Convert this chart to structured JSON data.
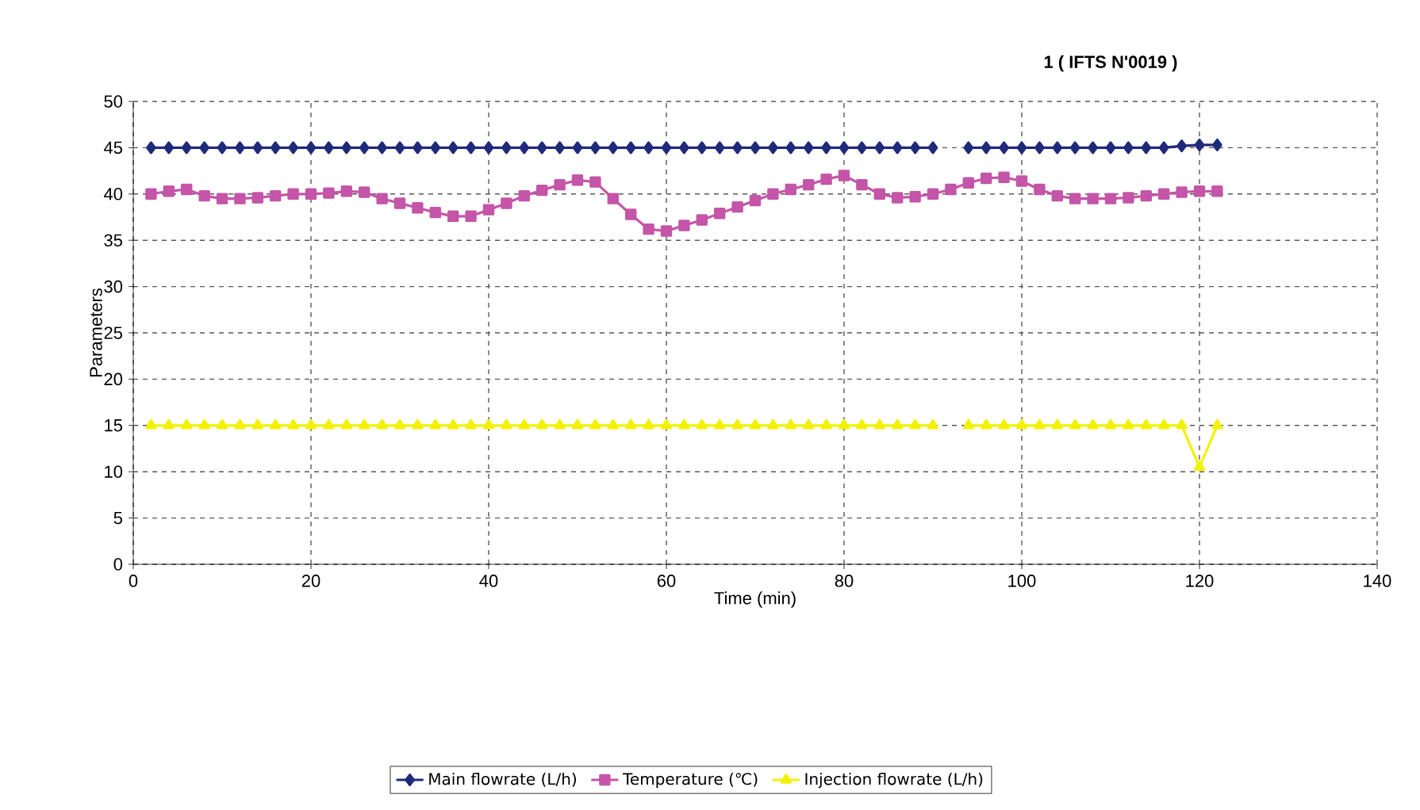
{
  "chart_data": {
    "type": "line",
    "title": "1 ( IFTS N'0019 )",
    "xlabel": "Time (min)",
    "ylabel": "Parameters",
    "x": [
      2,
      4,
      6,
      8,
      10,
      12,
      14,
      16,
      18,
      20,
      22,
      24,
      26,
      28,
      30,
      32,
      34,
      36,
      38,
      40,
      42,
      44,
      46,
      48,
      50,
      52,
      54,
      56,
      58,
      60,
      62,
      64,
      66,
      68,
      70,
      72,
      74,
      76,
      78,
      80,
      82,
      84,
      86,
      88,
      90,
      92,
      94,
      96,
      98,
      100,
      102,
      104,
      106,
      108,
      110,
      112,
      114,
      116,
      118,
      120,
      122
    ],
    "series": [
      {
        "name": "Main flowrate (L/h)",
        "color": "#1f2a7a",
        "marker": "diamond",
        "values": [
          45,
          45,
          45,
          45,
          45,
          45,
          45,
          45,
          45,
          45,
          45,
          45,
          45,
          45,
          45,
          45,
          45,
          45,
          45,
          45,
          45,
          45,
          45,
          45,
          45,
          45,
          45,
          45,
          45,
          45,
          45,
          45,
          45,
          45,
          45,
          45,
          45,
          45,
          45,
          45,
          45,
          45,
          45,
          45,
          45,
          null,
          45,
          45,
          45,
          45,
          45,
          45,
          45,
          45,
          45,
          45,
          45,
          45,
          45.2,
          45.3,
          45.3
        ]
      },
      {
        "name": "Temperature (℃)",
        "color": "#c455a8",
        "marker": "square",
        "values": [
          40,
          40.3,
          40.5,
          39.8,
          39.5,
          39.5,
          39.6,
          39.8,
          40,
          40,
          40.1,
          40.3,
          40.2,
          39.5,
          39,
          38.5,
          38,
          37.6,
          37.6,
          38.3,
          39,
          39.8,
          40.4,
          41,
          41.5,
          41.3,
          39.5,
          37.8,
          36.2,
          36,
          36.6,
          37.2,
          37.9,
          38.6,
          39.3,
          40,
          40.5,
          41,
          41.6,
          42,
          41,
          40,
          39.6,
          39.7,
          40,
          40.5,
          41.2,
          41.7,
          41.8,
          41.4,
          40.5,
          39.8,
          39.5,
          39.5,
          39.5,
          39.6,
          39.8,
          40,
          40.2,
          40.3,
          40.3
        ]
      },
      {
        "name": "Injection flowrate (L/h)",
        "color": "#f2f200",
        "marker": "triangle",
        "values": [
          15,
          15,
          15,
          15,
          15,
          15,
          15,
          15,
          15,
          15,
          15,
          15,
          15,
          15,
          15,
          15,
          15,
          15,
          15,
          15,
          15,
          15,
          15,
          15,
          15,
          15,
          15,
          15,
          15,
          15,
          15,
          15,
          15,
          15,
          15,
          15,
          15,
          15,
          15,
          15,
          15,
          15,
          15,
          15,
          15,
          null,
          15,
          15,
          15,
          15,
          15,
          15,
          15,
          15,
          15,
          15,
          15,
          15,
          15,
          10.5,
          15
        ]
      }
    ],
    "xlim": [
      0,
      140
    ],
    "xticks": [
      0,
      20,
      40,
      60,
      80,
      100,
      120,
      140
    ],
    "ylim": [
      0,
      50
    ],
    "yticks": [
      0,
      5,
      10,
      15,
      20,
      25,
      30,
      35,
      40,
      45,
      50
    ],
    "grid": true,
    "legend": "bottom"
  }
}
